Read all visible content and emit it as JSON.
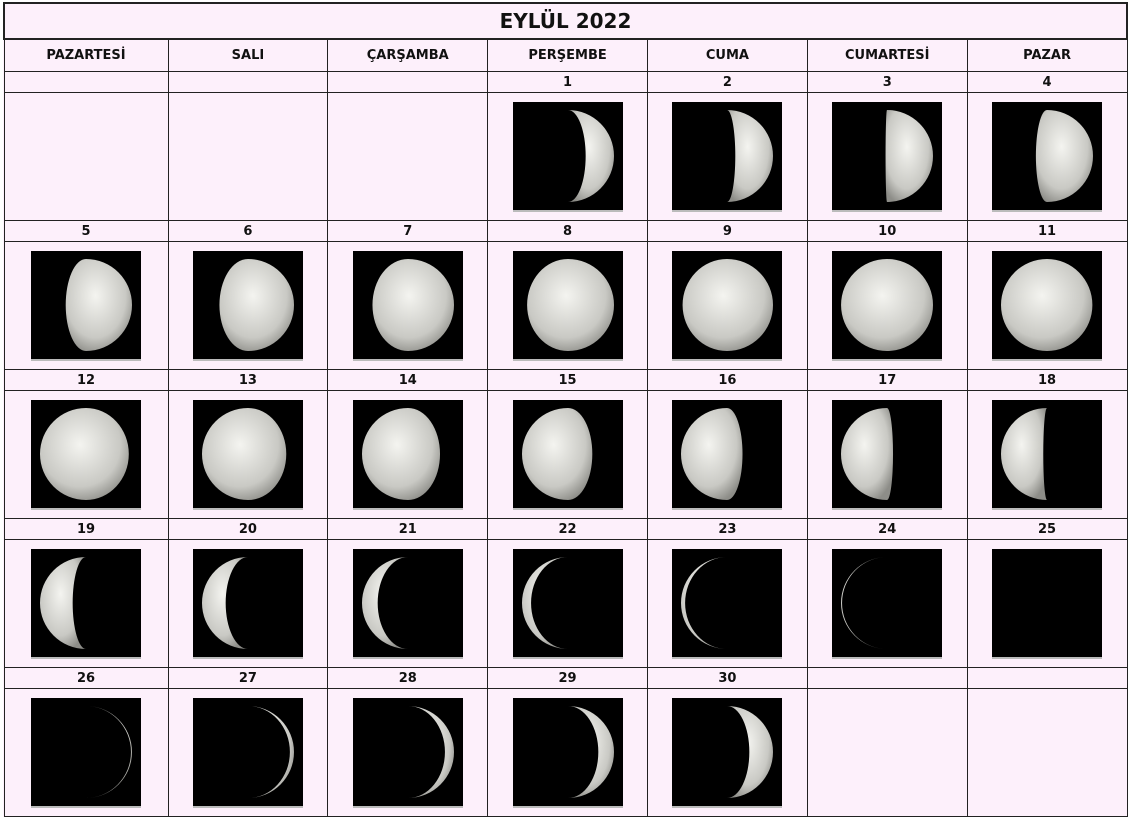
{
  "title": "EYLÜL 2022",
  "weekdays": [
    "PAZARTESİ",
    "SALI",
    "ÇARŞAMBA",
    "PERŞEMBE",
    "CUMA",
    "CUMARTESİ",
    "PAZAR"
  ],
  "weeks": [
    [
      null,
      null,
      null,
      1,
      2,
      3,
      4
    ],
    [
      5,
      6,
      7,
      8,
      9,
      10,
      11
    ],
    [
      12,
      13,
      14,
      15,
      16,
      17,
      18
    ],
    [
      19,
      20,
      21,
      22,
      23,
      24,
      25
    ],
    [
      26,
      27,
      28,
      29,
      30,
      null,
      null
    ]
  ]
}
